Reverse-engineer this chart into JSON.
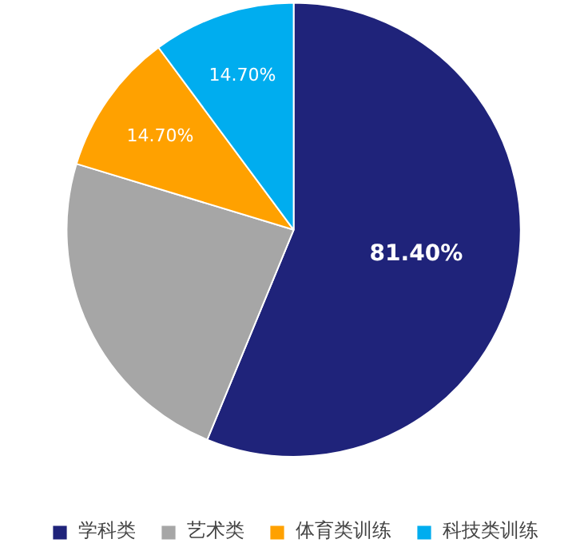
{
  "chart_data": {
    "type": "pie",
    "categories": [
      "学科类",
      "艺术类",
      "体育类训练",
      "科技类训练"
    ],
    "values": [
      81.4,
      34,
      14.7,
      14.7
    ],
    "colors": [
      "#1f237a",
      "#a6a6a6",
      "#ffa100",
      "#00adef"
    ],
    "value_labels": [
      "81.40%",
      null,
      "14.70%",
      "14.70%"
    ],
    "legend": "bottom"
  }
}
